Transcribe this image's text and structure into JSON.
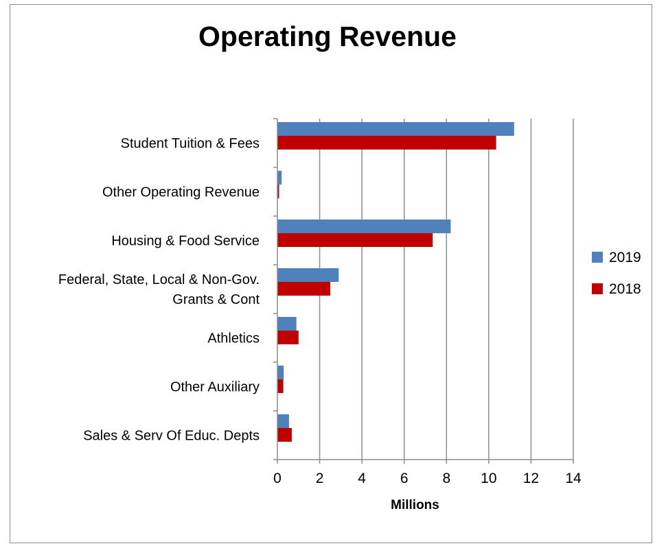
{
  "chart_data": {
    "type": "bar",
    "orientation": "horizontal",
    "title": "Operating Revenue",
    "xlabel": "Millions",
    "ylabel": "",
    "xlim": [
      0,
      14
    ],
    "x_ticks": [
      0,
      2,
      4,
      6,
      8,
      10,
      12,
      14
    ],
    "grid": "vertical",
    "legend_position": "right",
    "categories": [
      [
        "Student Tuition & Fees"
      ],
      [
        "Other Operating Revenue"
      ],
      [
        "Housing & Food Service"
      ],
      [
        "Federal, State, Local & Non-Gov.",
        "Grants & Cont"
      ],
      [
        "Athletics"
      ],
      [
        "Other Auxiliary"
      ],
      [
        "Sales & Serv Of Educ. Depts"
      ]
    ],
    "series": [
      {
        "name": "2019",
        "color": "#4f81bd",
        "values": [
          11.2,
          0.2,
          8.2,
          2.9,
          0.9,
          0.3,
          0.55
        ]
      },
      {
        "name": "2018",
        "color": "#c00000",
        "values": [
          10.35,
          0.08,
          7.35,
          2.5,
          1.0,
          0.28,
          0.68
        ]
      }
    ]
  }
}
